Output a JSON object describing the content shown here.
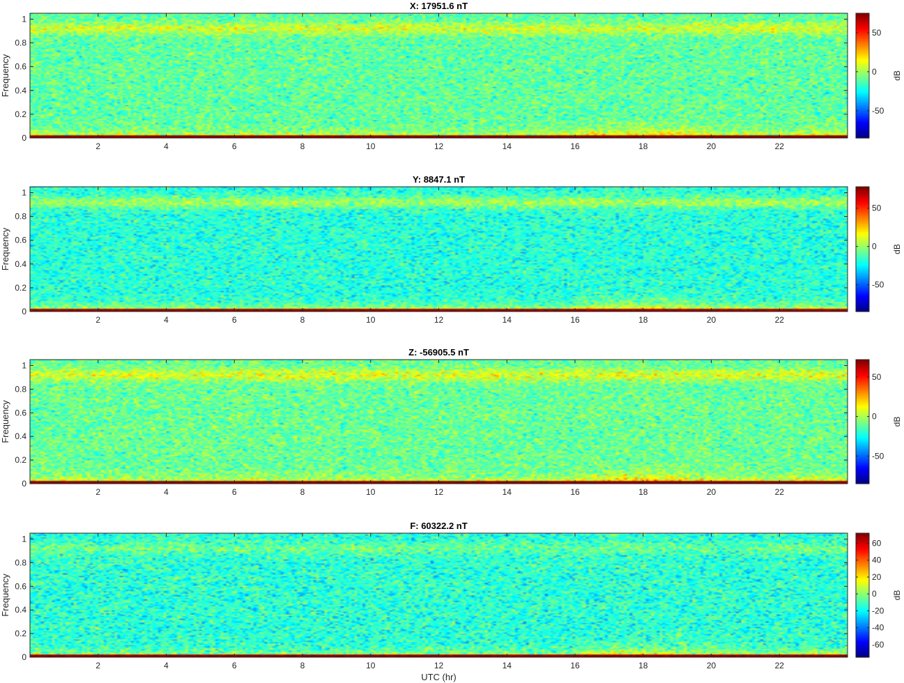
{
  "chart_data": [
    {
      "type": "heatmap",
      "title": "X: 17951.6 nT",
      "xlabel": "",
      "ylabel": "Frequency",
      "xlim": [
        0,
        24
      ],
      "ylim": [
        0,
        1.05
      ],
      "xticks": [
        2,
        4,
        6,
        8,
        10,
        12,
        14,
        16,
        18,
        20,
        22
      ],
      "yticks": [
        0,
        0.2,
        0.4,
        0.6,
        0.8,
        1
      ],
      "colorbar": {
        "label": "dB",
        "range": [
          -85,
          75
        ],
        "ticks": [
          -50,
          0,
          50
        ]
      },
      "colormap": "jet",
      "features": {
        "dc_band_db": 75,
        "low_freq_band_db": 25,
        "background_db": -10,
        "high_freq_band_db": 8,
        "activity_hours": [
          16.5,
          19.5
        ]
      }
    },
    {
      "type": "heatmap",
      "title": "Y: 8847.1 nT",
      "xlabel": "",
      "ylabel": "Frequency",
      "xlim": [
        0,
        24
      ],
      "ylim": [
        0,
        1.05
      ],
      "xticks": [
        2,
        4,
        6,
        8,
        10,
        12,
        14,
        16,
        18,
        20,
        22
      ],
      "yticks": [
        0,
        0.2,
        0.4,
        0.6,
        0.8,
        1
      ],
      "colorbar": {
        "label": "dB",
        "range": [
          -85,
          78
        ],
        "ticks": [
          -50,
          0,
          50
        ]
      },
      "colormap": "jet",
      "features": {
        "dc_band_db": 75,
        "low_freq_band_db": 25,
        "background_db": -18,
        "high_freq_band_db": 2,
        "activity_hours": [
          16.5,
          19.5
        ]
      }
    },
    {
      "type": "heatmap",
      "title": "Z: -56905.5 nT",
      "xlabel": "",
      "ylabel": "Frequency",
      "xlim": [
        0,
        24
      ],
      "ylim": [
        0,
        1.05
      ],
      "xticks": [
        2,
        4,
        6,
        8,
        10,
        12,
        14,
        16,
        18,
        20,
        22
      ],
      "yticks": [
        0,
        0.2,
        0.4,
        0.6,
        0.8,
        1
      ],
      "colorbar": {
        "label": "dB",
        "range": [
          -85,
          72
        ],
        "ticks": [
          -50,
          0,
          50
        ]
      },
      "colormap": "jet",
      "features": {
        "dc_band_db": 72,
        "low_freq_band_db": 25,
        "background_db": -10,
        "high_freq_band_db": 8,
        "activity_hours": [
          16.5,
          19.5
        ]
      }
    },
    {
      "type": "heatmap",
      "title": "F: 60322.2 nT",
      "xlabel": "UTC (hr)",
      "ylabel": "Frequency",
      "xlim": [
        0,
        24
      ],
      "ylim": [
        0,
        1.05
      ],
      "xticks": [
        2,
        4,
        6,
        8,
        10,
        12,
        14,
        16,
        18,
        20,
        22
      ],
      "yticks": [
        0,
        0.2,
        0.4,
        0.6,
        0.8,
        1
      ],
      "colorbar": {
        "label": "dB",
        "range": [
          -75,
          72
        ],
        "ticks": [
          -60,
          -40,
          -20,
          0,
          20,
          40,
          60
        ]
      },
      "colormap": "jet",
      "features": {
        "dc_band_db": 70,
        "low_freq_band_db": 18,
        "background_db": -14,
        "high_freq_band_db": -4,
        "activity_hours": [
          16.5,
          19.5
        ]
      }
    }
  ]
}
